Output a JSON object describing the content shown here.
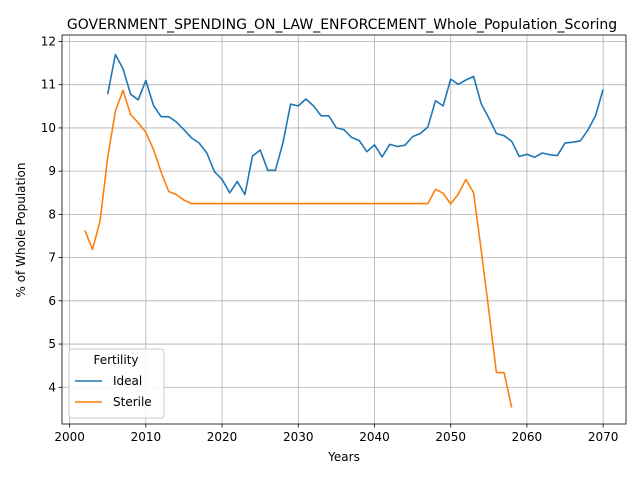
{
  "chart_data": {
    "type": "line",
    "title": "GOVERNMENT_SPENDING_ON_LAW_ENFORCEMENT_Whole_Population_Scoring",
    "xlabel": "Years",
    "ylabel": "% of Whole Population",
    "xlim": [
      1999,
      2073
    ],
    "ylim": [
      3.15,
      12.15
    ],
    "xticks": [
      2000,
      2010,
      2020,
      2030,
      2040,
      2050,
      2060,
      2070
    ],
    "yticks": [
      4,
      5,
      6,
      7,
      8,
      9,
      10,
      11,
      12
    ],
    "grid": true,
    "legend": {
      "title": "Fertility",
      "placement": "lower-left"
    },
    "series": [
      {
        "name": "Ideal",
        "color": "#1f77b4",
        "points": [
          [
            2005,
            10.78
          ],
          [
            2006,
            11.7
          ],
          [
            2007,
            11.37
          ],
          [
            2008,
            10.78
          ],
          [
            2009,
            10.65
          ],
          [
            2010,
            11.1
          ],
          [
            2011,
            10.52
          ],
          [
            2012,
            10.26
          ],
          [
            2013,
            10.26
          ],
          [
            2014,
            10.14
          ],
          [
            2015,
            9.96
          ],
          [
            2016,
            9.77
          ],
          [
            2017,
            9.65
          ],
          [
            2018,
            9.42
          ],
          [
            2019,
            8.99
          ],
          [
            2020,
            8.81
          ],
          [
            2021,
            8.5
          ],
          [
            2022,
            8.76
          ],
          [
            2023,
            8.46
          ],
          [
            2024,
            9.35
          ],
          [
            2025,
            9.49
          ],
          [
            2026,
            9.02
          ],
          [
            2027,
            9.02
          ],
          [
            2028,
            9.66
          ],
          [
            2029,
            10.55
          ],
          [
            2030,
            10.51
          ],
          [
            2031,
            10.67
          ],
          [
            2032,
            10.51
          ],
          [
            2033,
            10.28
          ],
          [
            2034,
            10.28
          ],
          [
            2035,
            10.0
          ],
          [
            2036,
            9.96
          ],
          [
            2037,
            9.78
          ],
          [
            2038,
            9.71
          ],
          [
            2039,
            9.45
          ],
          [
            2040,
            9.61
          ],
          [
            2041,
            9.33
          ],
          [
            2042,
            9.62
          ],
          [
            2043,
            9.57
          ],
          [
            2044,
            9.6
          ],
          [
            2045,
            9.8
          ],
          [
            2046,
            9.87
          ],
          [
            2047,
            10.02
          ],
          [
            2048,
            10.63
          ],
          [
            2049,
            10.51
          ],
          [
            2050,
            11.13
          ],
          [
            2051,
            11.01
          ],
          [
            2052,
            11.11
          ],
          [
            2053,
            11.19
          ],
          [
            2054,
            10.56
          ],
          [
            2055,
            10.23
          ],
          [
            2056,
            9.87
          ],
          [
            2057,
            9.82
          ],
          [
            2058,
            9.69
          ],
          [
            2059,
            9.34
          ],
          [
            2060,
            9.39
          ],
          [
            2061,
            9.32
          ],
          [
            2062,
            9.42
          ],
          [
            2063,
            9.38
          ],
          [
            2064,
            9.36
          ],
          [
            2065,
            9.65
          ],
          [
            2066,
            9.67
          ],
          [
            2067,
            9.7
          ],
          [
            2068,
            9.95
          ],
          [
            2069,
            10.28
          ],
          [
            2070,
            10.89
          ]
        ]
      },
      {
        "name": "Sterile",
        "color": "#ff7f0e",
        "points": [
          [
            2002,
            7.63
          ],
          [
            2003,
            7.19
          ],
          [
            2004,
            7.85
          ],
          [
            2005,
            9.32
          ],
          [
            2006,
            10.39
          ],
          [
            2007,
            10.87
          ],
          [
            2008,
            10.31
          ],
          [
            2009,
            10.12
          ],
          [
            2010,
            9.9
          ],
          [
            2011,
            9.5
          ],
          [
            2012,
            8.98
          ],
          [
            2013,
            8.53
          ],
          [
            2014,
            8.46
          ],
          [
            2015,
            8.33
          ],
          [
            2016,
            8.25
          ],
          [
            2017,
            8.25
          ],
          [
            2020,
            8.25
          ],
          [
            2025,
            8.25
          ],
          [
            2030,
            8.25
          ],
          [
            2035,
            8.25
          ],
          [
            2040,
            8.25
          ],
          [
            2045,
            8.25
          ],
          [
            2047,
            8.25
          ],
          [
            2048,
            8.58
          ],
          [
            2049,
            8.49
          ],
          [
            2050,
            8.24
          ],
          [
            2051,
            8.47
          ],
          [
            2052,
            8.81
          ],
          [
            2053,
            8.5
          ],
          [
            2054,
            7.17
          ],
          [
            2055,
            5.78
          ],
          [
            2056,
            4.34
          ],
          [
            2057,
            4.34
          ],
          [
            2058,
            3.53
          ]
        ]
      }
    ]
  }
}
